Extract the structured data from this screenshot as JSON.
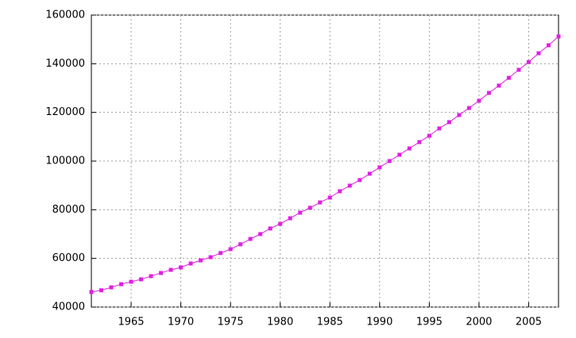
{
  "chart_data": {
    "type": "line",
    "x": [
      1961,
      1962,
      1963,
      1964,
      1965,
      1966,
      1967,
      1968,
      1969,
      1970,
      1971,
      1972,
      1973,
      1974,
      1975,
      1976,
      1977,
      1978,
      1979,
      1980,
      1981,
      1982,
      1983,
      1984,
      1985,
      1986,
      1987,
      1988,
      1989,
      1990,
      1991,
      1992,
      1993,
      1994,
      1995,
      1996,
      1997,
      1998,
      1999,
      2000,
      2001,
      2002,
      2003,
      2004,
      2005,
      2006,
      2007,
      2008
    ],
    "series": [
      {
        "color": "#e020e0",
        "values": [
          46200,
          46900,
          48100,
          49400,
          50400,
          51400,
          52700,
          54000,
          55300,
          56300,
          57900,
          59200,
          60500,
          62200,
          63800,
          65800,
          68000,
          70000,
          72300,
          74200,
          76500,
          78800,
          80800,
          83000,
          85000,
          87600,
          89900,
          92200,
          94800,
          97400,
          100000,
          102600,
          105200,
          107800,
          110400,
          113400,
          116000,
          118900,
          121800,
          124800,
          128000,
          131000,
          134200,
          137500,
          140700,
          144300,
          147600,
          151200
        ]
      }
    ],
    "xlim": [
      1961,
      2008
    ],
    "xticks": [
      1965,
      1970,
      1975,
      1980,
      1985,
      1990,
      1995,
      2000,
      2005
    ],
    "ylim": [
      40000,
      160000
    ],
    "yticks": [
      40000,
      60000,
      80000,
      100000,
      120000,
      140000,
      160000
    ],
    "grid": true
  }
}
